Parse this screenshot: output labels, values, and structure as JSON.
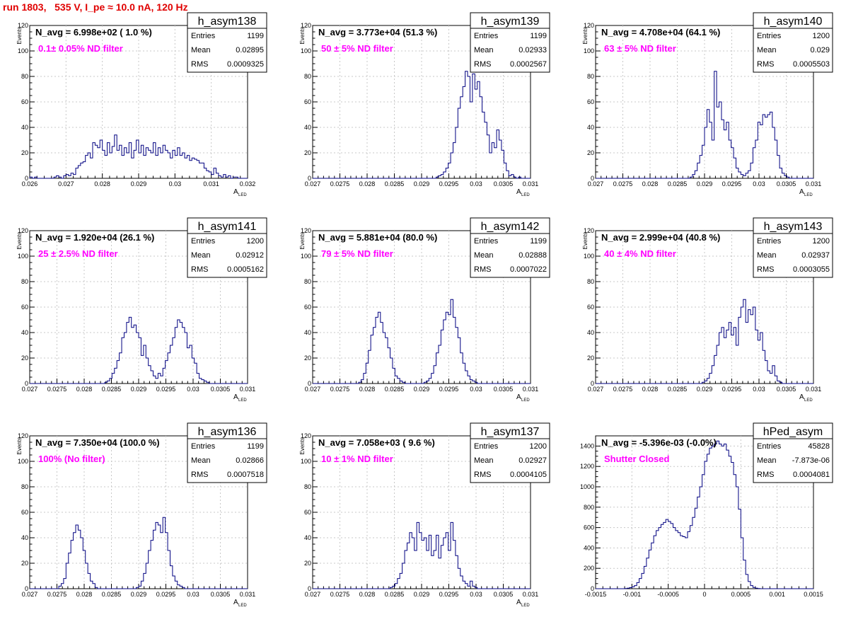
{
  "page": {
    "title": "run 1803,   535 V, I_pe ≈ 10.0 nA, 120 Hz"
  },
  "colors": {
    "histogram": "#000080",
    "annotation": "#ff00ff",
    "title": "#e00000",
    "axis": "#000000",
    "grid": "#c8c8c8"
  },
  "chart_data": [
    {
      "type": "histogram",
      "hist_name": "h_asym138",
      "navg": "N_avg = 6.998e+02 ( 1.0 %)",
      "annotation": "0.1± 0.05% ND filter",
      "stats": {
        "entries": "1199",
        "mean": "0.02895",
        "rms": "0.0009325"
      },
      "xlim": [
        0.026,
        0.032
      ],
      "ylim": [
        0,
        120
      ],
      "xticks": [
        "0.026",
        "0.027",
        "0.028",
        "0.029",
        "0.03",
        "0.031",
        "0.032"
      ],
      "yticks": [
        "0",
        "20",
        "40",
        "60",
        "80",
        "100",
        "120"
      ],
      "xlabel": "A",
      "xlabel_sub": "LED",
      "ylabel": "Events",
      "counts": [
        1,
        0,
        1,
        0,
        0,
        0,
        0,
        0,
        0,
        0,
        1,
        2,
        1,
        0,
        2,
        3,
        2,
        4,
        3,
        8,
        10,
        12,
        13,
        18,
        20,
        16,
        28,
        26,
        24,
        30,
        22,
        18,
        28,
        20,
        25,
        34,
        22,
        26,
        18,
        24,
        20,
        28,
        16,
        22,
        30,
        20,
        26,
        18,
        24,
        22,
        20,
        28,
        18,
        24,
        20,
        26,
        22,
        20,
        16,
        22,
        18,
        24,
        18,
        20,
        16,
        18,
        14,
        16,
        15,
        14,
        12,
        12,
        8,
        6,
        5,
        3,
        8,
        4,
        2,
        1,
        3,
        1,
        2,
        0,
        1,
        1,
        0,
        0,
        0,
        0
      ]
    },
    {
      "type": "histogram",
      "hist_name": "h_asym139",
      "navg": "N_avg = 3.773e+04 (51.3 %)",
      "annotation": "50 ± 5% ND filter",
      "stats": {
        "entries": "1199",
        "mean": "0.02933",
        "rms": "0.0002567"
      },
      "xlim": [
        0.027,
        0.031
      ],
      "ylim": [
        0,
        120
      ],
      "xticks": [
        "0.027",
        "0.0275",
        "0.028",
        "0.0285",
        "0.029",
        "0.0295",
        "0.03",
        "0.0305",
        "0.031"
      ],
      "yticks": [
        "0",
        "20",
        "40",
        "60",
        "80",
        "100",
        "120"
      ],
      "xlabel": "A",
      "xlabel_sub": "LED",
      "ylabel": "Events",
      "counts": [
        0,
        0,
        0,
        0,
        0,
        0,
        0,
        0,
        0,
        0,
        0,
        0,
        0,
        0,
        0,
        0,
        0,
        0,
        0,
        0,
        0,
        0,
        0,
        0,
        0,
        0,
        0,
        0,
        0,
        0,
        0,
        0,
        0,
        0,
        0,
        0,
        0,
        0,
        0,
        0,
        0,
        0,
        0,
        0,
        0,
        0,
        0,
        0,
        0,
        0,
        0,
        1,
        2,
        3,
        5,
        8,
        12,
        20,
        28,
        40,
        55,
        64,
        72,
        84,
        80,
        60,
        82,
        70,
        76,
        64,
        52,
        44,
        34,
        20,
        28,
        24,
        38,
        30,
        22,
        12,
        6,
        2,
        3,
        1,
        0,
        1,
        0,
        0,
        0,
        0
      ]
    },
    {
      "type": "histogram",
      "hist_name": "h_asym140",
      "navg": "N_avg = 4.708e+04 (64.1 %)",
      "annotation": "63 ± 5% ND filter",
      "stats": {
        "entries": "1200",
        "mean": "0.029",
        "rms": "0.0005503"
      },
      "xlim": [
        0.027,
        0.031
      ],
      "ylim": [
        0,
        120
      ],
      "xticks": [
        "0.027",
        "0.0275",
        "0.028",
        "0.0285",
        "0.029",
        "0.0295",
        "0.03",
        "0.0305",
        "0.031"
      ],
      "yticks": [
        "0",
        "20",
        "40",
        "60",
        "80",
        "100",
        "120"
      ],
      "xlabel": "A",
      "xlabel_sub": "LED",
      "ylabel": "Events",
      "counts": [
        0,
        0,
        0,
        0,
        0,
        0,
        0,
        0,
        0,
        0,
        0,
        0,
        0,
        0,
        0,
        0,
        0,
        0,
        0,
        0,
        0,
        0,
        0,
        0,
        0,
        0,
        0,
        0,
        0,
        0,
        0,
        0,
        0,
        0,
        0,
        0,
        0,
        0,
        0,
        1,
        3,
        6,
        12,
        18,
        26,
        40,
        54,
        44,
        30,
        84,
        56,
        60,
        46,
        38,
        44,
        30,
        24,
        16,
        8,
        5,
        3,
        2,
        4,
        6,
        12,
        24,
        30,
        44,
        42,
        50,
        48,
        50,
        52,
        40,
        30,
        18,
        8,
        4,
        2,
        1,
        0,
        0,
        0,
        0,
        0,
        0,
        0,
        0,
        0,
        0
      ]
    },
    {
      "type": "histogram",
      "hist_name": "h_asym141",
      "navg": "N_avg = 1.920e+04 (26.1 %)",
      "annotation": "25 ± 2.5% ND filter",
      "stats": {
        "entries": "1200",
        "mean": "0.02912",
        "rms": "0.0005162"
      },
      "xlim": [
        0.027,
        0.031
      ],
      "ylim": [
        0,
        120
      ],
      "xticks": [
        "0.027",
        "0.0275",
        "0.028",
        "0.0285",
        "0.029",
        "0.0295",
        "0.03",
        "0.0305",
        "0.031"
      ],
      "yticks": [
        "0",
        "20",
        "40",
        "60",
        "80",
        "100",
        "120"
      ],
      "xlabel": "A",
      "xlabel_sub": "LED",
      "ylabel": "Events",
      "counts": [
        0,
        0,
        0,
        0,
        0,
        0,
        0,
        0,
        0,
        0,
        0,
        0,
        0,
        0,
        0,
        0,
        0,
        0,
        0,
        0,
        0,
        0,
        0,
        0,
        0,
        0,
        0,
        0,
        0,
        0,
        0,
        1,
        2,
        4,
        8,
        12,
        18,
        24,
        36,
        40,
        48,
        52,
        44,
        46,
        40,
        36,
        22,
        30,
        20,
        14,
        10,
        6,
        4,
        8,
        6,
        12,
        18,
        24,
        30,
        36,
        44,
        50,
        48,
        44,
        40,
        28,
        30,
        20,
        16,
        8,
        4,
        3,
        2,
        1,
        0,
        0,
        0,
        0,
        0,
        0,
        0,
        0,
        0,
        0,
        0,
        0,
        0,
        0,
        0,
        0
      ]
    },
    {
      "type": "histogram",
      "hist_name": "h_asym142",
      "navg": "N_avg = 5.881e+04 (80.0 %)",
      "annotation": "79 ± 5% ND filter",
      "stats": {
        "entries": "1199",
        "mean": "0.02888",
        "rms": "0.0007022"
      },
      "xlim": [
        0.027,
        0.031
      ],
      "ylim": [
        0,
        120
      ],
      "xticks": [
        "0.027",
        "0.0275",
        "0.028",
        "0.0285",
        "0.029",
        "0.0295",
        "0.03",
        "0.0305",
        "0.031"
      ],
      "yticks": [
        "0",
        "20",
        "40",
        "60",
        "80",
        "100",
        "120"
      ],
      "xlabel": "A",
      "xlabel_sub": "LED",
      "ylabel": "Events",
      "counts": [
        0,
        0,
        0,
        0,
        0,
        0,
        0,
        0,
        0,
        0,
        0,
        0,
        0,
        0,
        0,
        0,
        0,
        0,
        0,
        1,
        3,
        8,
        16,
        26,
        38,
        44,
        52,
        56,
        48,
        40,
        36,
        28,
        20,
        12,
        6,
        4,
        2,
        1,
        0,
        0,
        0,
        0,
        0,
        0,
        0,
        0,
        1,
        2,
        4,
        8,
        14,
        24,
        30,
        42,
        50,
        56,
        54,
        66,
        52,
        44,
        36,
        24,
        16,
        10,
        6,
        3,
        2,
        1,
        0,
        0,
        0,
        0,
        0,
        0,
        0,
        0,
        0,
        0,
        0,
        0,
        0,
        0,
        0,
        0,
        0,
        0,
        0,
        0,
        0,
        0
      ]
    },
    {
      "type": "histogram",
      "hist_name": "h_asym143",
      "navg": "N_avg = 2.999e+04 (40.8 %)",
      "annotation": "40 ± 4% ND filter",
      "stats": {
        "entries": "1200",
        "mean": "0.02937",
        "rms": "0.0003055"
      },
      "xlim": [
        0.027,
        0.031
      ],
      "ylim": [
        0,
        120
      ],
      "xticks": [
        "0.027",
        "0.0275",
        "0.028",
        "0.0285",
        "0.029",
        "0.0295",
        "0.03",
        "0.0305",
        "0.031"
      ],
      "yticks": [
        "0",
        "20",
        "40",
        "60",
        "80",
        "100",
        "120"
      ],
      "xlabel": "A",
      "xlabel_sub": "LED",
      "ylabel": "Events",
      "counts": [
        0,
        0,
        0,
        0,
        0,
        0,
        0,
        0,
        0,
        0,
        0,
        0,
        0,
        0,
        0,
        0,
        0,
        0,
        0,
        0,
        0,
        0,
        0,
        0,
        0,
        0,
        0,
        0,
        0,
        0,
        0,
        0,
        0,
        0,
        0,
        0,
        0,
        0,
        0,
        0,
        0,
        0,
        0,
        0,
        1,
        2,
        4,
        8,
        14,
        22,
        30,
        40,
        44,
        36,
        42,
        48,
        38,
        44,
        30,
        52,
        60,
        66,
        48,
        58,
        54,
        60,
        42,
        34,
        40,
        26,
        18,
        10,
        8,
        14,
        6,
        2,
        1,
        0,
        0,
        0,
        0,
        0,
        0,
        0,
        0,
        0,
        0,
        0,
        0,
        0
      ]
    },
    {
      "type": "histogram",
      "hist_name": "h_asym136",
      "navg": "N_avg = 7.350e+04 (100.0 %)",
      "annotation": "100% (No filter)",
      "stats": {
        "entries": "1199",
        "mean": "0.02866",
        "rms": "0.0007518"
      },
      "xlim": [
        0.027,
        0.031
      ],
      "ylim": [
        0,
        120
      ],
      "xticks": [
        "0.027",
        "0.0275",
        "0.028",
        "0.0285",
        "0.029",
        "0.0295",
        "0.03",
        "0.0305",
        "0.031"
      ],
      "yticks": [
        "0",
        "20",
        "40",
        "60",
        "80",
        "100",
        "120"
      ],
      "xlabel": "A",
      "xlabel_sub": "LED",
      "ylabel": "Events",
      "counts": [
        0,
        0,
        0,
        0,
        0,
        0,
        0,
        0,
        0,
        0,
        0,
        0,
        2,
        4,
        8,
        20,
        28,
        38,
        44,
        50,
        46,
        40,
        30,
        20,
        12,
        6,
        4,
        1,
        0,
        0,
        0,
        0,
        0,
        0,
        0,
        0,
        0,
        0,
        0,
        0,
        0,
        0,
        0,
        0,
        1,
        2,
        6,
        12,
        20,
        30,
        38,
        46,
        52,
        50,
        44,
        56,
        44,
        30,
        18,
        10,
        6,
        3,
        2,
        1,
        0,
        0,
        0,
        0,
        0,
        0,
        0,
        0,
        0,
        0,
        0,
        0,
        0,
        0,
        0,
        0,
        0,
        0,
        0,
        0,
        0,
        0,
        0,
        0,
        0,
        0
      ]
    },
    {
      "type": "histogram",
      "hist_name": "h_asym137",
      "navg": "N_avg = 7.058e+03 ( 9.6 %)",
      "annotation": "10 ± 1% ND filter",
      "stats": {
        "entries": "1200",
        "mean": "0.02927",
        "rms": "0.0004105"
      },
      "xlim": [
        0.027,
        0.031
      ],
      "ylim": [
        0,
        120
      ],
      "xticks": [
        "0.027",
        "0.0275",
        "0.028",
        "0.0285",
        "0.029",
        "0.0295",
        "0.03",
        "0.0305",
        "0.031"
      ],
      "yticks": [
        "0",
        "20",
        "40",
        "60",
        "80",
        "100",
        "120"
      ],
      "xlabel": "A",
      "xlabel_sub": "LED",
      "ylabel": "Events",
      "counts": [
        0,
        0,
        0,
        0,
        0,
        0,
        0,
        0,
        0,
        0,
        0,
        0,
        0,
        0,
        0,
        0,
        0,
        0,
        0,
        0,
        0,
        0,
        0,
        0,
        0,
        0,
        0,
        0,
        0,
        0,
        0,
        0,
        1,
        2,
        4,
        8,
        12,
        20,
        30,
        36,
        44,
        40,
        30,
        52,
        44,
        38,
        40,
        30,
        42,
        26,
        30,
        42,
        24,
        34,
        40,
        44,
        30,
        52,
        38,
        26,
        16,
        10,
        6,
        4,
        2,
        6,
        2,
        1,
        0,
        0,
        0,
        0,
        0,
        0,
        0,
        0,
        0,
        0,
        0,
        0,
        0,
        0,
        0,
        0,
        0,
        0,
        0,
        0,
        0,
        0
      ]
    },
    {
      "type": "histogram",
      "hist_name": "hPed_asym",
      "navg": "N_avg = -5.396e-03 (-0.0%)",
      "annotation": "Shutter Closed",
      "stats": {
        "entries": "45828",
        "mean": "-7.873e-06",
        "rms": "0.0004081"
      },
      "xlim": [
        -0.0015,
        0.0015
      ],
      "ylim": [
        0,
        1500
      ],
      "xticks": [
        "-0.0015",
        "-0.001",
        "-0.0005",
        "0",
        "0.0005",
        "0.001",
        "0.0015"
      ],
      "yticks": [
        "0",
        "200",
        "400",
        "600",
        "800",
        "1000",
        "1200",
        "1400"
      ],
      "xlabel": "",
      "xlabel_sub": "",
      "ylabel": "",
      "counts": [
        0,
        0,
        0,
        0,
        0,
        0,
        0,
        0,
        0,
        0,
        0,
        0,
        2,
        5,
        10,
        18,
        30,
        60,
        100,
        150,
        220,
        300,
        380,
        450,
        520,
        570,
        600,
        630,
        650,
        680,
        660,
        640,
        600,
        570,
        550,
        520,
        510,
        500,
        560,
        620,
        700,
        790,
        900,
        1000,
        1120,
        1250,
        1320,
        1380,
        1400,
        1420,
        1450,
        1420,
        1400,
        1420,
        1360,
        1300,
        1240,
        1120,
        1000,
        780,
        500,
        280,
        140,
        70,
        30,
        12,
        5,
        2,
        0,
        0,
        0,
        0,
        0,
        0,
        0,
        0,
        0,
        0,
        0,
        0,
        0,
        0,
        0,
        0,
        0,
        0,
        0,
        0,
        0,
        0
      ]
    }
  ]
}
